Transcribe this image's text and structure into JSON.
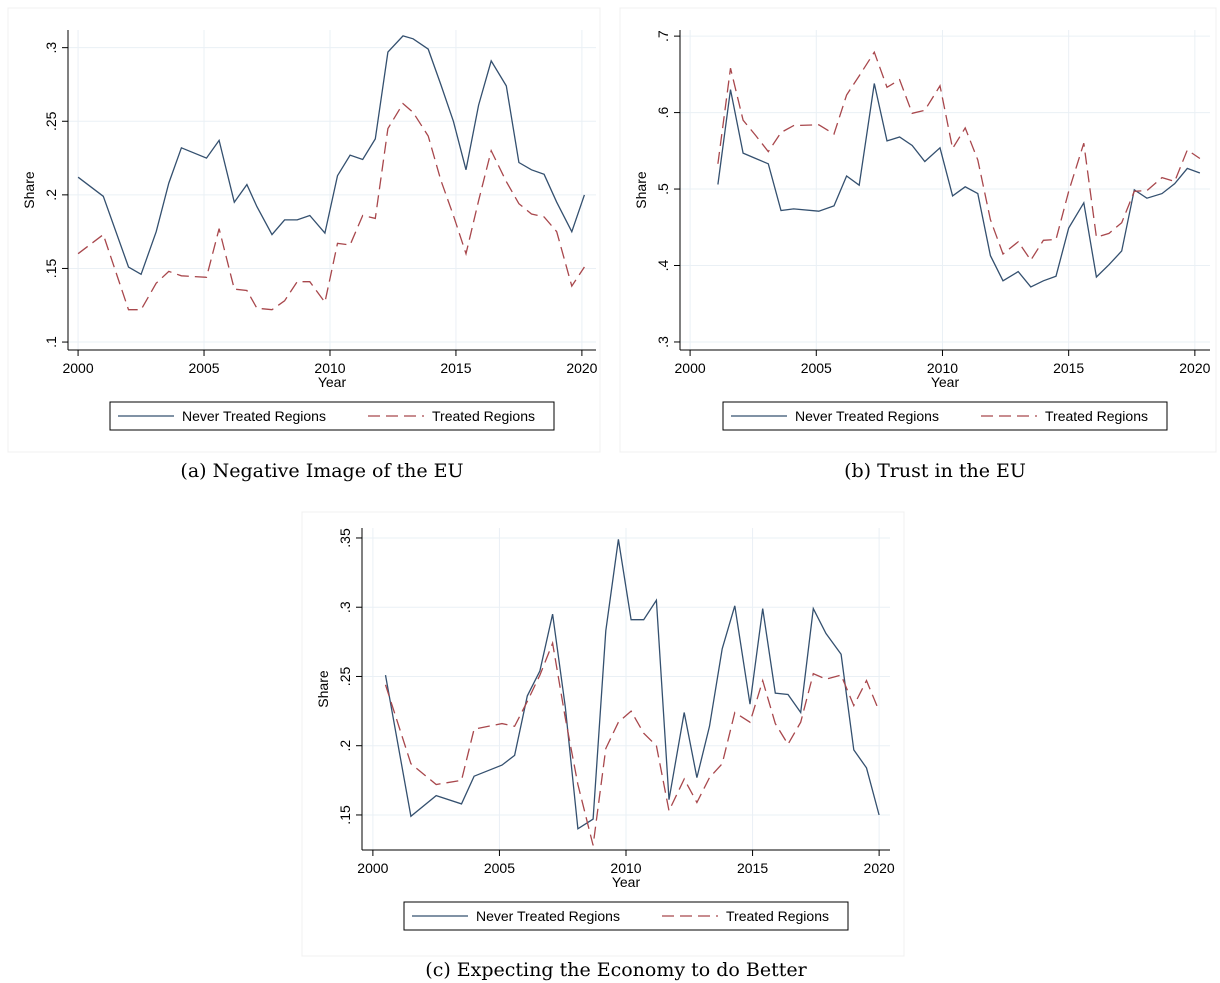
{
  "chart_data": [
    {
      "type": "line",
      "caption": "(a)  Negative Image of the EU",
      "x_label": "Year",
      "y_label": "Share",
      "x": [
        2000,
        2001,
        2002,
        2002.5,
        2003.1,
        2003.6,
        2004.1,
        2005.1,
        2005.6,
        2006.2,
        2006.7,
        2007.1,
        2007.7,
        2008.2,
        2008.7,
        2009.2,
        2009.8,
        2010.3,
        2010.8,
        2011.3,
        2011.8,
        2012.3,
        2012.9,
        2013.3,
        2013.9,
        2014.4,
        2014.9,
        2015.4,
        2015.9,
        2016.4,
        2017,
        2017.5,
        2018,
        2018.5,
        2019,
        2019.6,
        2020.1
      ],
      "series": [
        {
          "name": "Never Treated Regions",
          "color": "#34506f",
          "dashed": false,
          "values": [
            0.212,
            0.199,
            0.151,
            0.146,
            0.175,
            0.208,
            0.232,
            0.225,
            0.237,
            0.195,
            0.207,
            0.192,
            0.173,
            0.183,
            0.183,
            0.186,
            0.174,
            0.213,
            0.227,
            0.224,
            0.238,
            0.297,
            0.308,
            0.306,
            0.299,
            0.275,
            0.25,
            0.217,
            0.261,
            0.291,
            0.274,
            0.222,
            0.217,
            0.214,
            0.195,
            0.175,
            0.2
          ]
        },
        {
          "name": "Treated Regions",
          "color": "#a8474c",
          "dashed": true,
          "values": [
            0.16,
            0.173,
            0.122,
            0.122,
            0.14,
            0.148,
            0.145,
            0.144,
            0.177,
            0.136,
            0.135,
            0.123,
            0.122,
            0.128,
            0.141,
            0.141,
            0.127,
            0.167,
            0.166,
            0.186,
            0.184,
            0.245,
            0.262,
            0.256,
            0.24,
            0.21,
            0.186,
            0.16,
            0.196,
            0.23,
            0.209,
            0.194,
            0.187,
            0.185,
            0.175,
            0.138,
            0.151
          ]
        }
      ],
      "xlim": [
        1999.6,
        2020.56
      ],
      "xticks": [
        2000,
        2005,
        2010,
        2015,
        2020
      ],
      "ylim": [
        0.0946,
        0.312
      ],
      "yticks": [
        {
          "value": 0.1,
          "label": ".1"
        },
        {
          "value": 0.15,
          "label": ".15"
        },
        {
          "value": 0.2,
          "label": ".2"
        },
        {
          "value": 0.25,
          "label": ".25"
        },
        {
          "value": 0.3,
          "label": ".3"
        }
      ],
      "grid": true
    },
    {
      "type": "line",
      "caption": "(b)  Trust in the EU",
      "x_label": "Year",
      "y_label": "Share",
      "x": [
        2001.1,
        2001.6,
        2002.1,
        2002.6,
        2003.1,
        2003.6,
        2004.1,
        2005.1,
        2005.7,
        2006.2,
        2006.7,
        2007.3,
        2007.8,
        2008.3,
        2008.8,
        2009.3,
        2009.9,
        2010.4,
        2010.9,
        2011.4,
        2011.9,
        2012.4,
        2013,
        2013.5,
        2014,
        2014.5,
        2015,
        2015.6,
        2016.1,
        2016.6,
        2017.1,
        2017.6,
        2018.1,
        2018.7,
        2019.2,
        2019.7,
        2020.2
      ],
      "series": [
        {
          "name": "Never Treated Regions",
          "color": "#34506f",
          "dashed": false,
          "values": [
            0.506,
            0.63,
            0.547,
            0.54,
            0.533,
            0.472,
            0.474,
            0.471,
            0.478,
            0.517,
            0.505,
            0.638,
            0.563,
            0.568,
            0.557,
            0.536,
            0.554,
            0.491,
            0.503,
            0.494,
            0.413,
            0.38,
            0.392,
            0.372,
            0.38,
            0.386,
            0.449,
            0.482,
            0.385,
            0.401,
            0.419,
            0.499,
            0.488,
            0.494,
            0.507,
            0.527,
            0.521
          ]
        },
        {
          "name": "Treated Regions",
          "color": "#a8474c",
          "dashed": true,
          "values": [
            0.533,
            0.658,
            0.59,
            0.57,
            0.549,
            0.574,
            0.583,
            0.584,
            0.572,
            0.623,
            0.648,
            0.679,
            0.633,
            0.643,
            0.599,
            0.603,
            0.635,
            0.553,
            0.58,
            0.538,
            0.46,
            0.415,
            0.431,
            0.407,
            0.433,
            0.434,
            0.497,
            0.56,
            0.437,
            0.442,
            0.456,
            0.497,
            0.498,
            0.515,
            0.51,
            0.551,
            0.54
          ]
        }
      ],
      "xlim": [
        1999.6,
        2020.6
      ],
      "xticks": [
        2000,
        2005,
        2010,
        2015,
        2020
      ],
      "ylim": [
        0.2895,
        0.708
      ],
      "yticks": [
        {
          "value": 0.3,
          "label": ".3"
        },
        {
          "value": 0.4,
          "label": ".4"
        },
        {
          "value": 0.5,
          "label": ".5"
        },
        {
          "value": 0.6,
          "label": ".6"
        },
        {
          "value": 0.7,
          "label": ".7"
        }
      ],
      "grid": true
    },
    {
      "type": "line",
      "caption": "(c)  Expecting the Economy to do Better",
      "x_label": "Year",
      "y_label": "Share",
      "x": [
        2000.5,
        2001.5,
        2002.5,
        2003.5,
        2004,
        2005.1,
        2005.6,
        2006.1,
        2006.6,
        2007.1,
        2007.6,
        2008.1,
        2008.7,
        2009.2,
        2009.7,
        2010.2,
        2010.7,
        2011.2,
        2011.7,
        2012.3,
        2012.8,
        2013.3,
        2013.8,
        2014.3,
        2014.9,
        2015.4,
        2015.9,
        2016.4,
        2016.9,
        2017.4,
        2017.9,
        2018.5,
        2019,
        2019.5,
        2020
      ],
      "series": [
        {
          "name": "Never Treated Regions",
          "color": "#34506f",
          "dashed": false,
          "values": [
            0.251,
            0.149,
            0.164,
            0.158,
            0.178,
            0.186,
            0.193,
            0.236,
            0.254,
            0.295,
            0.228,
            0.14,
            0.147,
            0.283,
            0.349,
            0.291,
            0.291,
            0.305,
            0.161,
            0.224,
            0.177,
            0.214,
            0.27,
            0.301,
            0.23,
            0.299,
            0.238,
            0.237,
            0.224,
            0.299,
            0.281,
            0.266,
            0.197,
            0.184,
            0.15
          ]
        },
        {
          "name": "Treated Regions",
          "color": "#a8474c",
          "dashed": true,
          "values": [
            0.244,
            0.187,
            0.172,
            0.175,
            0.212,
            0.216,
            0.214,
            0.232,
            0.251,
            0.274,
            0.22,
            0.172,
            0.128,
            0.198,
            0.217,
            0.225,
            0.209,
            0.2,
            0.153,
            0.176,
            0.159,
            0.177,
            0.187,
            0.224,
            0.217,
            0.247,
            0.216,
            0.201,
            0.217,
            0.252,
            0.248,
            0.251,
            0.229,
            0.247,
            0.225
          ]
        }
      ],
      "xlim": [
        1999.57,
        2020.43
      ],
      "xticks": [
        2000,
        2005,
        2010,
        2015,
        2020
      ],
      "ylim": [
        0.1247,
        0.3572
      ],
      "yticks": [
        {
          "value": 0.15,
          "label": ".15"
        },
        {
          "value": 0.2,
          "label": ".2"
        },
        {
          "value": 0.25,
          "label": ".25"
        },
        {
          "value": 0.3,
          "label": ".3"
        },
        {
          "value": 0.35,
          "label": ".35"
        }
      ],
      "grid": true
    }
  ]
}
